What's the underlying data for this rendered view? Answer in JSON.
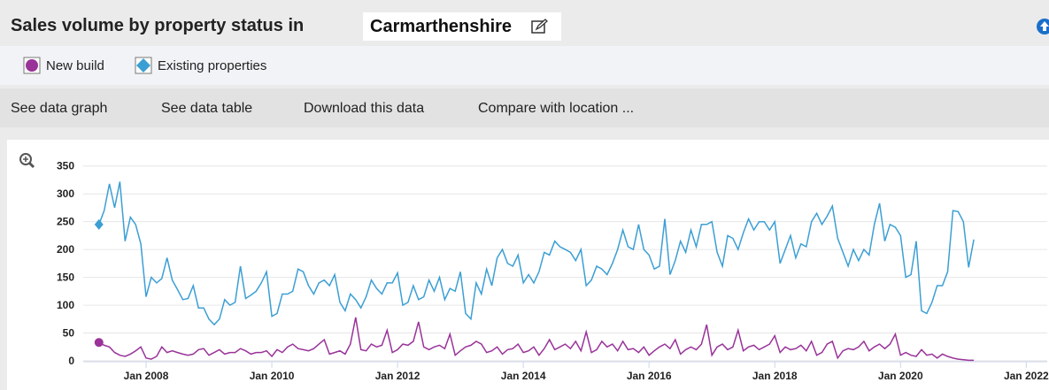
{
  "header": {
    "title": "Sales volume by property status in",
    "location": "Carmarthenshire"
  },
  "menu": [
    "See data graph",
    "See data table",
    "Download this data",
    "Compare with location ..."
  ],
  "chart_data": {
    "type": "line",
    "x": [
      "2007-04",
      "2007-05",
      "2007-06",
      "2007-07",
      "2007-08",
      "2007-09",
      "2007-10",
      "2007-11",
      "2007-12",
      "2008-01",
      "2008-02",
      "2008-03",
      "2008-04",
      "2008-05",
      "2008-06",
      "2008-07",
      "2008-08",
      "2008-09",
      "2008-10",
      "2008-11",
      "2008-12",
      "2009-01",
      "2009-02",
      "2009-03",
      "2009-04",
      "2009-05",
      "2009-06",
      "2009-07",
      "2009-08",
      "2009-09",
      "2009-10",
      "2009-11",
      "2009-12",
      "2010-01",
      "2010-02",
      "2010-03",
      "2010-04",
      "2010-05",
      "2010-06",
      "2010-07",
      "2010-08",
      "2010-09",
      "2010-10",
      "2010-11",
      "2010-12",
      "2011-01",
      "2011-02",
      "2011-03",
      "2011-04",
      "2011-05",
      "2011-06",
      "2011-07",
      "2011-08",
      "2011-09",
      "2011-10",
      "2011-11",
      "2011-12",
      "2012-01",
      "2012-02",
      "2012-03",
      "2012-04",
      "2012-05",
      "2012-06",
      "2012-07",
      "2012-08",
      "2012-09",
      "2012-10",
      "2012-11",
      "2012-12",
      "2013-01",
      "2013-02",
      "2013-03",
      "2013-04",
      "2013-05",
      "2013-06",
      "2013-07",
      "2013-08",
      "2013-09",
      "2013-10",
      "2013-11",
      "2013-12",
      "2014-01",
      "2014-02",
      "2014-03",
      "2014-04",
      "2014-05",
      "2014-06",
      "2014-07",
      "2014-08",
      "2014-09",
      "2014-10",
      "2014-11",
      "2014-12",
      "2015-01",
      "2015-02",
      "2015-03",
      "2015-04",
      "2015-05",
      "2015-06",
      "2015-07",
      "2015-08",
      "2015-09",
      "2015-10",
      "2015-11",
      "2015-12",
      "2016-01",
      "2016-02",
      "2016-03",
      "2016-04",
      "2016-05",
      "2016-06",
      "2016-07",
      "2016-08",
      "2016-09",
      "2016-10",
      "2016-11",
      "2016-12",
      "2017-01",
      "2017-02",
      "2017-03",
      "2017-04",
      "2017-05",
      "2017-06",
      "2017-07",
      "2017-08",
      "2017-09",
      "2017-10",
      "2017-11",
      "2017-12",
      "2018-01",
      "2018-02",
      "2018-03",
      "2018-04",
      "2018-05",
      "2018-06",
      "2018-07",
      "2018-08",
      "2018-09",
      "2018-10",
      "2018-11",
      "2018-12",
      "2019-01",
      "2019-02",
      "2019-03",
      "2019-04",
      "2019-05",
      "2019-06",
      "2019-07",
      "2019-08",
      "2019-09",
      "2019-10",
      "2019-11",
      "2019-12",
      "2020-01",
      "2020-02",
      "2020-03",
      "2020-04",
      "2020-05",
      "2020-06",
      "2020-07",
      "2020-08",
      "2020-09",
      "2020-10",
      "2020-11",
      "2020-12",
      "2021-01",
      "2021-02",
      "2021-03"
    ],
    "series": [
      {
        "name": "New build",
        "color": "#993399",
        "values": [
          33,
          28,
          25,
          15,
          10,
          8,
          12,
          18,
          25,
          5,
          3,
          8,
          25,
          15,
          18,
          15,
          12,
          10,
          12,
          20,
          22,
          10,
          15,
          20,
          12,
          15,
          15,
          22,
          18,
          12,
          15,
          15,
          18,
          8,
          20,
          15,
          25,
          30,
          22,
          20,
          18,
          22,
          30,
          38,
          12,
          15,
          18,
          12,
          30,
          78,
          20,
          18,
          30,
          25,
          28,
          55,
          15,
          20,
          30,
          28,
          35,
          70,
          25,
          20,
          25,
          28,
          22,
          48,
          10,
          18,
          25,
          28,
          35,
          30,
          15,
          18,
          25,
          12,
          20,
          22,
          30,
          15,
          18,
          25,
          10,
          22,
          38,
          20,
          25,
          30,
          22,
          35,
          18,
          52,
          15,
          20,
          35,
          25,
          30,
          18,
          35,
          20,
          22,
          15,
          25,
          10,
          18,
          25,
          30,
          22,
          38,
          12,
          20,
          25,
          20,
          30,
          65,
          10,
          25,
          30,
          20,
          25,
          55,
          18,
          25,
          28,
          20,
          25,
          30,
          45,
          15,
          25,
          20,
          22,
          28,
          18,
          35,
          10,
          15,
          30,
          35,
          5,
          18,
          22,
          20,
          25,
          35,
          18,
          25,
          30,
          22,
          30,
          48,
          10,
          15,
          10,
          8,
          20,
          10,
          12,
          5,
          12,
          8,
          5,
          3,
          2,
          1,
          1
        ]
      },
      {
        "name": "Existing properties",
        "color": "#3c9fd4",
        "values": [
          245,
          270,
          318,
          275,
          322,
          215,
          258,
          245,
          210,
          115,
          150,
          140,
          148,
          185,
          145,
          128,
          110,
          112,
          135,
          95,
          95,
          75,
          65,
          75,
          110,
          100,
          105,
          170,
          112,
          118,
          125,
          140,
          160,
          80,
          85,
          120,
          120,
          125,
          165,
          160,
          135,
          120,
          140,
          145,
          135,
          155,
          105,
          90,
          120,
          110,
          95,
          115,
          145,
          130,
          120,
          140,
          140,
          158,
          100,
          105,
          135,
          110,
          115,
          145,
          125,
          150,
          110,
          130,
          125,
          160,
          85,
          75,
          140,
          120,
          165,
          135,
          185,
          200,
          175,
          170,
          190,
          140,
          155,
          140,
          160,
          195,
          190,
          215,
          205,
          200,
          195,
          180,
          200,
          135,
          145,
          170,
          165,
          155,
          175,
          200,
          235,
          205,
          200,
          245,
          200,
          190,
          165,
          170,
          255,
          155,
          180,
          215,
          195,
          235,
          205,
          245,
          245,
          250,
          195,
          170,
          225,
          220,
          200,
          230,
          255,
          235,
          250,
          250,
          235,
          250,
          175,
          200,
          225,
          185,
          210,
          205,
          250,
          265,
          245,
          260,
          278,
          220,
          195,
          170,
          200,
          180,
          200,
          190,
          245,
          283,
          215,
          245,
          240,
          225,
          150,
          155,
          215,
          90,
          85,
          105,
          135,
          135,
          160,
          270,
          268,
          250,
          168,
          218
        ]
      }
    ],
    "xlim": [
      "2007-01",
      "2022-05"
    ],
    "xticks": [
      {
        "value": "2008-01",
        "label": "Jan 2008"
      },
      {
        "value": "2010-01",
        "label": "Jan 2010"
      },
      {
        "value": "2012-01",
        "label": "Jan 2012"
      },
      {
        "value": "2014-01",
        "label": "Jan 2014"
      },
      {
        "value": "2016-01",
        "label": "Jan 2016"
      },
      {
        "value": "2018-01",
        "label": "Jan 2018"
      },
      {
        "value": "2020-01",
        "label": "Jan 2020"
      },
      {
        "value": "2022-01",
        "label": "Jan 2022"
      }
    ],
    "ylim": [
      0,
      375
    ],
    "yticks": [
      0,
      50,
      100,
      150,
      200,
      250,
      300,
      350
    ],
    "grid": true
  }
}
